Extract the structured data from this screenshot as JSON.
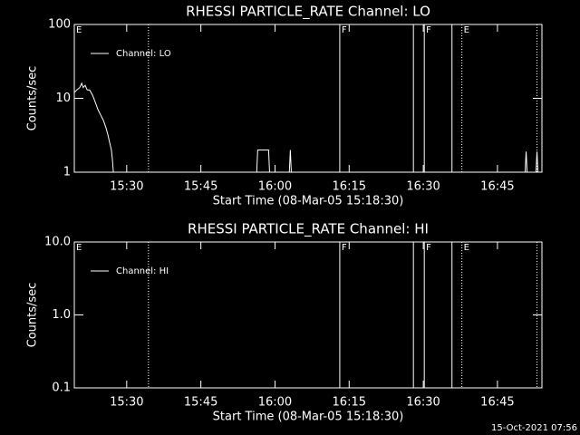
{
  "chart_data": [
    {
      "type": "line",
      "title": "RHESSI PARTICLE_RATE Channel: LO",
      "xlabel": "Start Time (08-Mar-05 15:18:30)",
      "ylabel": "Counts/sec",
      "xlim": [
        919.4,
        1014
      ],
      "xticks": [
        {
          "value": 930,
          "label": "15:30"
        },
        {
          "value": 945,
          "label": "15:45"
        },
        {
          "value": 960,
          "label": "16:00"
        },
        {
          "value": 975,
          "label": "16:15"
        },
        {
          "value": 990,
          "label": "16:30"
        },
        {
          "value": 1005,
          "label": "16:45"
        }
      ],
      "ylim": [
        1,
        100
      ],
      "yticks": [
        1,
        10,
        100
      ],
      "log_y": true,
      "legend": "upper left",
      "annotations": [
        {
          "x": 919.4,
          "style": "solid",
          "label": "E"
        },
        {
          "x": 934.4,
          "style": "dotted"
        },
        {
          "x": 973.1,
          "style": "solid",
          "label": "F"
        },
        {
          "x": 988.0,
          "style": "solid"
        },
        {
          "x": 990.2,
          "style": "solid",
          "label": "F"
        },
        {
          "x": 995.8,
          "style": "solid"
        },
        {
          "x": 997.8,
          "style": "dotted",
          "label": "E"
        },
        {
          "x": 1013.0,
          "style": "dotted"
        }
      ],
      "series": [
        {
          "name": "Channel: LO",
          "color": "#ffffff",
          "x": [
            919.4,
            919.9,
            920.5,
            920.9,
            921.2,
            921.6,
            922.0,
            922.5,
            923.1,
            923.6,
            924.2,
            924.7,
            925.3,
            925.8,
            926.2,
            926.5,
            926.9,
            927.1,
            927.3,
            null,
            956.3,
            956.5,
            958.7,
            958.9,
            null,
            962.9,
            963.1,
            963.3,
            null,
            1010.6,
            1010.8,
            1011.0,
            null,
            1012.8,
            1013.0,
            1013.2
          ],
          "values": [
            12,
            13,
            14,
            16,
            14,
            15,
            13,
            13,
            11,
            9,
            7,
            6,
            5,
            4,
            3.2,
            2.6,
            2,
            1.5,
            1,
            null,
            1,
            2,
            2,
            1,
            null,
            1,
            2,
            1,
            null,
            1,
            1.9,
            1,
            null,
            1,
            1.9,
            1
          ]
        }
      ]
    },
    {
      "type": "line",
      "title": "RHESSI PARTICLE_RATE Channel: HI",
      "xlabel": "Start Time (08-Mar-05 15:18:30)",
      "ylabel": "Counts/sec",
      "xlim": [
        919.4,
        1014
      ],
      "xticks": [
        {
          "value": 930,
          "label": "15:30"
        },
        {
          "value": 945,
          "label": "15:45"
        },
        {
          "value": 960,
          "label": "16:00"
        },
        {
          "value": 975,
          "label": "16:15"
        },
        {
          "value": 990,
          "label": "16:30"
        },
        {
          "value": 1005,
          "label": "16:45"
        }
      ],
      "ylim": [
        0.1,
        10
      ],
      "yticks": [
        0.1,
        {
          "value": 1,
          "label": "1.0"
        },
        {
          "value": 10,
          "label": "10.0"
        }
      ],
      "log_y": true,
      "legend": "upper left",
      "annotations": [
        {
          "x": 919.4,
          "style": "solid",
          "label": "E"
        },
        {
          "x": 934.4,
          "style": "dotted"
        },
        {
          "x": 973.1,
          "style": "solid",
          "label": "F"
        },
        {
          "x": 988.0,
          "style": "solid"
        },
        {
          "x": 990.2,
          "style": "solid",
          "label": "F"
        },
        {
          "x": 995.8,
          "style": "solid"
        },
        {
          "x": 997.8,
          "style": "dotted",
          "label": "E"
        },
        {
          "x": 1013.0,
          "style": "dotted"
        }
      ],
      "series": [
        {
          "name": "Channel: HI",
          "color": "#ffffff",
          "x": [],
          "values": []
        }
      ]
    }
  ],
  "footer": "15-Oct-2021 07:56"
}
